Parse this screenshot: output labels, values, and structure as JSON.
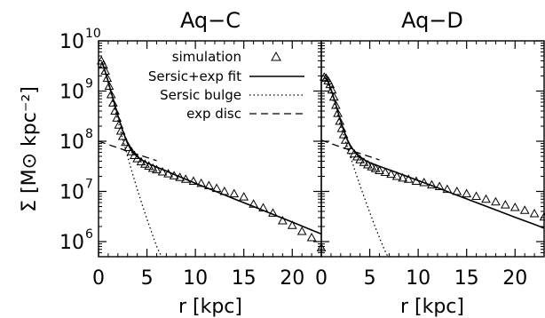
{
  "chart_data": [
    {
      "type": "line",
      "title": "Aq−C",
      "xlabel": "r [kpc]",
      "ylabel": "Σ [M⊙ kpc⁻²]",
      "xlim": [
        0,
        23
      ],
      "ylim": [
        500000,
        10000000000
      ],
      "yscale": "log",
      "x_ticks": [
        "0",
        "5",
        "10",
        "15",
        "20"
      ],
      "y_ticks": [
        "10",
        "10",
        "10",
        "10",
        "10"
      ],
      "y_tick_exponents": [
        "10",
        "9",
        "8",
        "7",
        "6"
      ],
      "legend_position": "top-right",
      "series": [
        {
          "name": "simulation",
          "style": "triangle-markers",
          "x": [
            0.3,
            0.5,
            0.7,
            0.9,
            1.1,
            1.3,
            1.5,
            1.7,
            1.9,
            2.1,
            2.3,
            2.5,
            2.8,
            3.1,
            3.4,
            3.7,
            4.0,
            4.4,
            4.8,
            5.2,
            5.6,
            6.0,
            6.6,
            7.2,
            7.8,
            8.4,
            9.0,
            9.8,
            10.6,
            11.4,
            12.2,
            13.0,
            14.0,
            15.0,
            16.0,
            17.0,
            18.0,
            19.0,
            20.0,
            21.0,
            22.0,
            23.0
          ],
          "y": [
            4000000000.0,
            3300000000.0,
            2500000000.0,
            1800000000.0,
            1250000000.0,
            850000000.0,
            580000000.0,
            400000000.0,
            290000000.0,
            210000000.0,
            160000000.0,
            125000000.0,
            95000000.0,
            75000000.0,
            62000000.0,
            52000000.0,
            45000000.0,
            39000000.0,
            35000000.0,
            32000000.0,
            29000000.0,
            27000000.0,
            24500000.0,
            22500000.0,
            20500000.0,
            19000000.0,
            17500000.0,
            16000000.0,
            14500000.0,
            13000000.0,
            11500000.0,
            10000000.0,
            9000000.0,
            7800000.0,
            5600000.0,
            4700000.0,
            3700000.0,
            2600000.0,
            2100000.0,
            1600000.0,
            1200000.0,
            750000.0
          ]
        },
        {
          "name": "Sersic+exp fit",
          "style": "solid",
          "x": [
            0.3,
            0.5,
            0.7,
            1.0,
            1.3,
            1.6,
            2.0,
            2.5,
            3.0,
            3.5,
            4.0,
            4.5,
            5.0,
            5.5,
            6.0,
            7.0,
            8.0,
            9.0,
            10.0,
            12.0,
            14.0,
            16.0,
            18.0,
            20.0,
            22.0,
            23.0
          ],
          "y": [
            3800000000.0,
            3200000000.0,
            2400000000.0,
            1550000000.0,
            950000000.0,
            600000000.0,
            330000000.0,
            160000000.0,
            90000000.0,
            61000000.0,
            49000000.0,
            42000000.0,
            37000000.0,
            33500000.0,
            30500000.0,
            25500000.0,
            21000000.0,
            17500000.0,
            14500000.0,
            10200000.0,
            7100000.0,
            5000000.0,
            3500000.0,
            2450000.0,
            1700000.0,
            1420000.0
          ]
        },
        {
          "name": "Sersic bulge",
          "style": "dotted",
          "x": [
            0.3,
            0.6,
            1.0,
            1.5,
            2.0,
            2.5,
            3.0,
            3.5,
            4.0,
            4.5,
            5.0,
            5.5,
            6.0,
            6.5,
            7.0
          ],
          "y": [
            3700000000.0,
            2700000000.0,
            1450000000.0,
            600000000.0,
            260000000.0,
            110000000.0,
            50000000.0,
            23000000.0,
            11000000.0,
            5500000.0,
            2800000.0,
            1500000.0,
            800000.0,
            500000.0,
            300000.0
          ]
        },
        {
          "name": "exp disc",
          "style": "dashed",
          "x": [
            0,
            2,
            4,
            6
          ],
          "y": [
            100000000.0,
            74000000.0,
            55000000.0,
            41000000.0
          ]
        }
      ]
    },
    {
      "type": "line",
      "title": "Aq−D",
      "xlabel": "r [kpc]",
      "xlim": [
        0,
        23
      ],
      "ylim": [
        500000,
        10000000000
      ],
      "yscale": "log",
      "x_ticks": [
        "0",
        "5",
        "10",
        "15",
        "20"
      ],
      "series": [
        {
          "name": "simulation",
          "style": "triangle-markers",
          "x": [
            0.3,
            0.5,
            0.7,
            0.9,
            1.1,
            1.3,
            1.5,
            1.7,
            1.9,
            2.1,
            2.3,
            2.5,
            2.8,
            3.1,
            3.4,
            3.7,
            4.0,
            4.4,
            4.8,
            5.2,
            5.6,
            6.0,
            6.6,
            7.2,
            7.8,
            8.4,
            9.0,
            9.8,
            10.6,
            11.4,
            12.2,
            13.0,
            14.0,
            15.0,
            16.0,
            17.0,
            18.0,
            19.0,
            20.0,
            21.0,
            22.0,
            23.0
          ],
          "y": [
            1900000000.0,
            1800000000.0,
            1600000000.0,
            1350000000.0,
            1050000000.0,
            760000000.0,
            520000000.0,
            360000000.0,
            250000000.0,
            180000000.0,
            135000000.0,
            105000000.0,
            82000000.0,
            66000000.0,
            56000000.0,
            49000000.0,
            43000000.0,
            38000000.0,
            34000000.0,
            31000000.0,
            28500000.0,
            26000000.0,
            24000000.0,
            22000000.0,
            20000000.0,
            18500000.0,
            17500000.0,
            16000000.0,
            15000000.0,
            13500000.0,
            12500000.0,
            11000000.0,
            10000000.0,
            9000000.0,
            8000000.0,
            7000000.0,
            6200000.0,
            5400000.0,
            4800000.0,
            4200000.0,
            3600000.0,
            3100000.0
          ]
        },
        {
          "name": "Sersic+exp fit",
          "style": "solid",
          "x": [
            0.3,
            0.5,
            0.8,
            1.1,
            1.4,
            1.8,
            2.2,
            2.6,
            3.0,
            3.5,
            4.0,
            4.5,
            5.0,
            6.0,
            7.0,
            8.0,
            10.0,
            12.0,
            14.0,
            16.0,
            18.0,
            20.0,
            22.0,
            23.0
          ],
          "y": [
            1900000000.0,
            1750000000.0,
            1400000000.0,
            950000000.0,
            620000000.0,
            340000000.0,
            190000000.0,
            115000000.0,
            80000000.0,
            60000000.0,
            49000000.0,
            42000000.0,
            37500000.0,
            31500000.0,
            27000000.0,
            23000000.0,
            16500000.0,
            11800000.0,
            8400000.0,
            6000000.0,
            4300000.0,
            3050000.0,
            2200000.0,
            1850000.0
          ]
        },
        {
          "name": "Sersic bulge",
          "style": "dotted",
          "x": [
            0.3,
            0.6,
            1.0,
            1.5,
            2.0,
            2.5,
            3.0,
            3.5,
            4.0,
            4.5,
            5.0,
            5.5,
            6.0,
            6.5,
            7.0,
            7.5
          ],
          "y": [
            1850000000.0,
            1600000000.0,
            900000000.0,
            420000000.0,
            200000000.0,
            100000000.0,
            50000000.0,
            25000000.0,
            13000000.0,
            7000000.0,
            3800000.0,
            2100000.0,
            1200000.0,
            700000.0,
            450000.0,
            300000.0
          ]
        },
        {
          "name": "exp disc",
          "style": "dashed",
          "x": [
            0,
            2,
            4,
            6
          ],
          "y": [
            105000000.0,
            77000000.0,
            57000000.0,
            42500000.0
          ]
        }
      ]
    }
  ]
}
